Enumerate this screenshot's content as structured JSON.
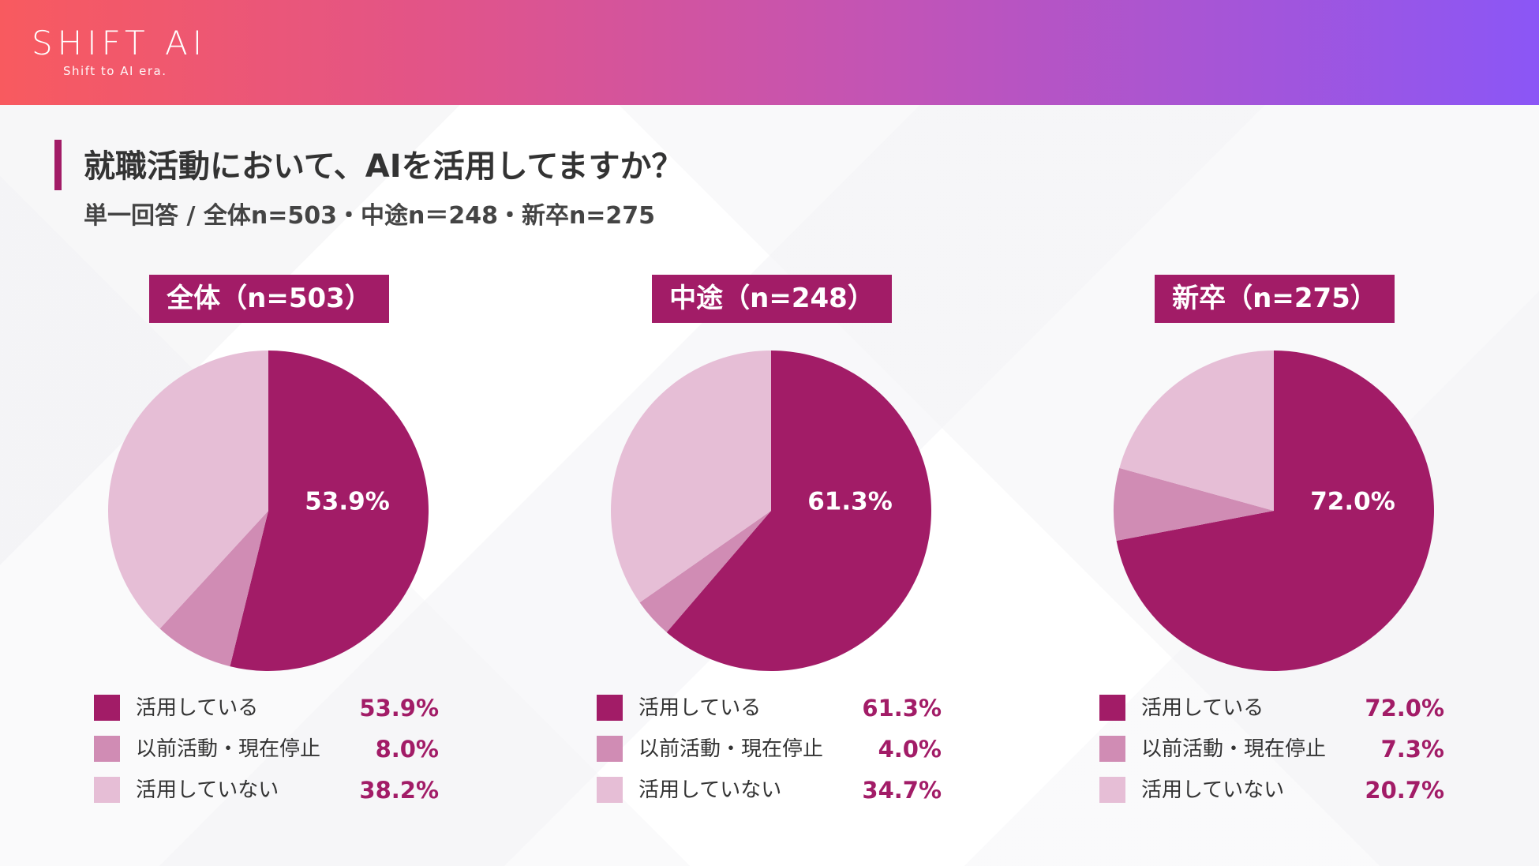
{
  "header": {
    "logo_text": "SHIFT AI",
    "logo_tagline": "Shift to AI era."
  },
  "title": "就職活動において、AIを活用してますか？",
  "subtitle": "単一回答 / 全体n=503・中途n＝248・新卒n=275",
  "colors": {
    "accent": "#a21c67",
    "using": "#a21c67",
    "stopped": "#d08cb4",
    "not_using": "#e6bed6"
  },
  "legend_labels": [
    "活用している",
    "以前活動・現在停止",
    "活用していない"
  ],
  "chart_data": [
    {
      "type": "pie",
      "title": "全体（n=503）",
      "categories": [
        "活用している",
        "以前活動・現在停止",
        "活用していない"
      ],
      "values": [
        53.9,
        8.0,
        38.2
      ],
      "value_labels": [
        "53.9%",
        "8.0%",
        "38.2%"
      ],
      "center_label": "53.9%"
    },
    {
      "type": "pie",
      "title": "中途（n=248）",
      "categories": [
        "活用している",
        "以前活動・現在停止",
        "活用していない"
      ],
      "values": [
        61.3,
        4.0,
        34.7
      ],
      "value_labels": [
        "61.3%",
        "4.0%",
        "34.7%"
      ],
      "center_label": "61.3%"
    },
    {
      "type": "pie",
      "title": "新卒（n=275）",
      "categories": [
        "活用している",
        "以前活動・現在停止",
        "活用していない"
      ],
      "values": [
        72.0,
        7.3,
        20.7
      ],
      "value_labels": [
        "72.0%",
        "7.3%",
        "20.7%"
      ],
      "center_label": "72.0%"
    }
  ]
}
